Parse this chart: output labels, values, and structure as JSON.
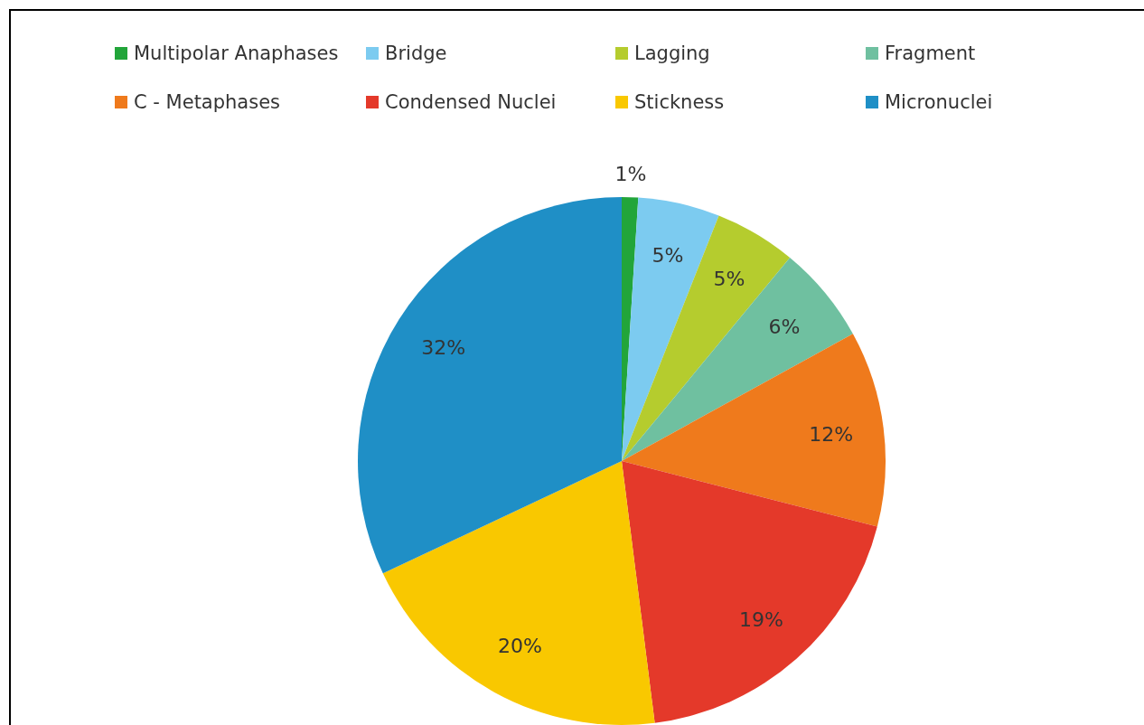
{
  "chart_data": {
    "type": "pie",
    "categories": [
      "Multipolar Anaphases",
      "Bridge",
      "Lagging",
      "Fragment",
      "C - Metaphases",
      "Condensed Nuclei",
      "Stickness",
      "Micronuclei"
    ],
    "values": [
      1,
      5,
      5,
      6,
      12,
      19,
      20,
      32
    ],
    "colors": [
      "#22a53a",
      "#7ccbf0",
      "#b5cc2e",
      "#6fc0a0",
      "#ef7a1c",
      "#e4392a",
      "#f9c800",
      "#1f8fc6"
    ],
    "value_labels": [
      "1%",
      "5%",
      "5%",
      "6%",
      "12%",
      "19%",
      "20%",
      "32%"
    ],
    "legend": "top"
  }
}
